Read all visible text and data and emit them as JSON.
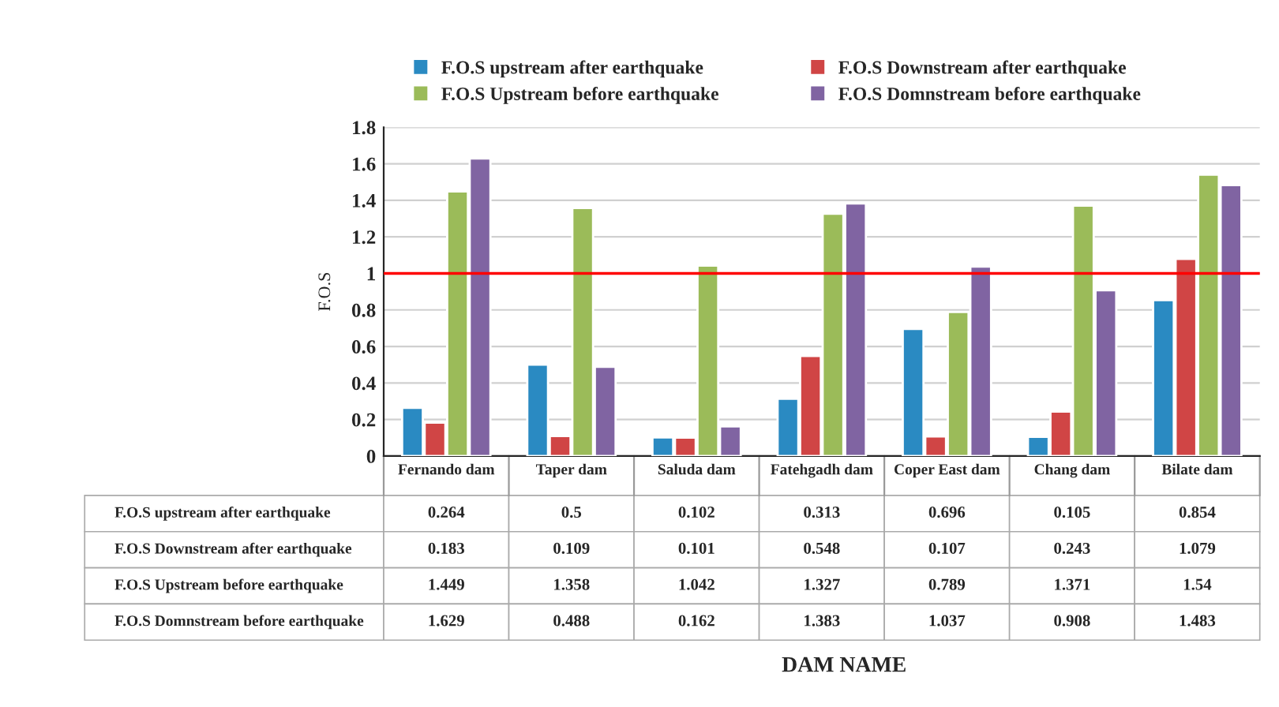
{
  "chart_data": {
    "type": "bar",
    "ylabel": "F.O.S",
    "annotations": [
      "DAM NAME"
    ],
    "categories": [
      "Fernando dam",
      "Taper dam",
      "Saluda dam",
      "Fatehgadh dam",
      "Coper East dam",
      "Chang dam",
      "Bilate dam"
    ],
    "series": [
      {
        "name": "F.O.S upstream after earthquake",
        "color": "#2a8ac2",
        "values": [
          0.264,
          0.5,
          0.102,
          0.313,
          0.696,
          0.105,
          0.854
        ]
      },
      {
        "name": "F.O.S Downstream after earthquake",
        "color": "#d04545",
        "values": [
          0.183,
          0.109,
          0.101,
          0.548,
          0.107,
          0.243,
          1.079
        ]
      },
      {
        "name": "F.O.S Upstream before earthquake",
        "color": "#9bbb59",
        "values": [
          1.449,
          1.358,
          1.042,
          1.327,
          0.789,
          1.371,
          1.54
        ]
      },
      {
        "name": "F.O.S Domnstream before earthquake",
        "color": "#8064a2",
        "values": [
          1.629,
          0.488,
          0.162,
          1.383,
          1.037,
          0.908,
          1.483
        ]
      }
    ],
    "ylim": [
      0,
      1.8
    ],
    "yticks": [
      0,
      0.2,
      0.4,
      0.6,
      0.8,
      1,
      1.2,
      1.4,
      1.6,
      1.8
    ],
    "ref_lines": [
      {
        "axis": "y",
        "value": 1,
        "color": "#ff0000"
      }
    ],
    "grid": "y",
    "legend": "top",
    "data_labels": true
  }
}
